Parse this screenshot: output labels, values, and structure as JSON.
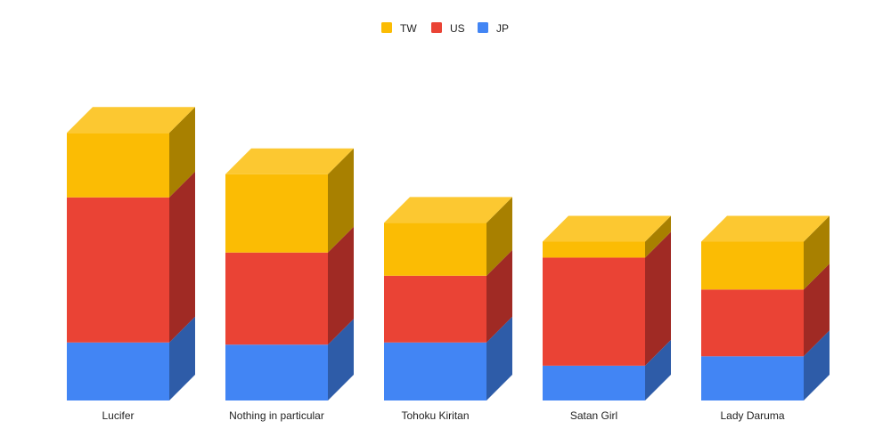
{
  "chart_data": {
    "type": "bar",
    "stacked": true,
    "three_d": true,
    "categories": [
      "Lucifer",
      "Nothing in particular",
      "Tohoku Kiritan",
      "Satan Girl",
      "Lady Daruma"
    ],
    "series": [
      {
        "name": "JP",
        "values": [
          8.0,
          7.7,
          8.0,
          4.8,
          6.1
        ],
        "color": "#4285F4",
        "side_color": "#2E5CA8"
      },
      {
        "name": "US",
        "values": [
          20.0,
          12.7,
          9.2,
          14.9,
          9.2
        ],
        "color": "#EA4335",
        "side_color": "#A02A24"
      },
      {
        "name": "TW",
        "values": [
          8.9,
          10.8,
          7.3,
          2.2,
          6.6
        ],
        "color": "#FBBC04",
        "side_color": "#A88000"
      }
    ],
    "legend": {
      "position": "top",
      "order": [
        "TW",
        "US",
        "JP"
      ]
    },
    "ylim": [
      0,
      40
    ],
    "grid": false,
    "title": "",
    "xlabel": "",
    "ylabel": ""
  }
}
